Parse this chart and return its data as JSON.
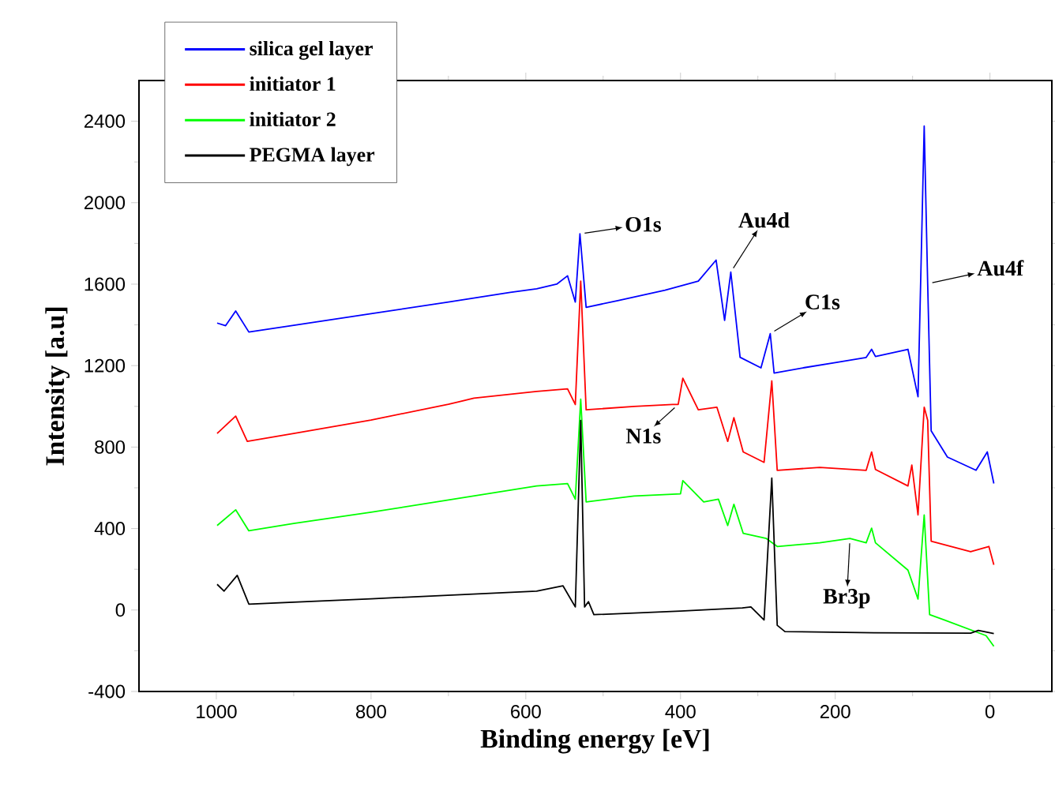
{
  "chart_data": {
    "type": "line",
    "xlabel": "Binding energy [eV]",
    "ylabel": "Intensity [a.u]",
    "xlim": [
      1100,
      -80
    ],
    "ylim": [
      -400,
      2600
    ],
    "xticks": [
      1000,
      800,
      600,
      400,
      200,
      0
    ],
    "yticks": [
      -400,
      0,
      400,
      800,
      1200,
      1600,
      2000,
      2400
    ],
    "legend": "top left",
    "line_style": "solid",
    "series": [
      {
        "name": "silica gel layer",
        "color": "#0000ff",
        "x": [
          999,
          988,
          975,
          958,
          900,
          800,
          700,
          620,
          586,
          560,
          546,
          536,
          530,
          522,
          480,
          420,
          377,
          354,
          343,
          335,
          323,
          296,
          284,
          279,
          240,
          200,
          160,
          153,
          148,
          106,
          93,
          89,
          85,
          80.5,
          76,
          55,
          18,
          3.4,
          -5
        ],
        "values": [
          1409,
          1396,
          1468,
          1365,
          1398,
          1455,
          1512,
          1560,
          1577,
          1600,
          1641,
          1512,
          1847,
          1486,
          1520,
          1570,
          1615,
          1718,
          1422,
          1659,
          1241,
          1189,
          1357,
          1163,
          1190,
          1215,
          1240,
          1280,
          1245,
          1280,
          1047,
          1705,
          2376,
          1602,
          880,
          751,
          686,
          776,
          621
        ]
      },
      {
        "name": "initiator 1",
        "color": "#ff0000",
        "x": [
          999,
          975,
          960,
          900,
          800,
          700,
          667,
          586,
          546,
          536,
          529,
          522,
          460,
          410,
          403,
          397,
          377,
          353,
          339,
          331,
          319,
          292,
          282,
          275,
          220,
          160,
          153,
          148,
          106,
          101,
          93,
          85,
          80.5,
          76,
          25,
          1.4,
          -5
        ],
        "values": [
          867,
          952,
          828,
          867,
          933,
          1010,
          1040,
          1073,
          1086,
          1009,
          1615,
          983,
          1000,
          1009,
          1009,
          1138,
          983,
          996,
          828,
          944,
          776,
          725,
          1125,
          686,
          700,
          686,
          776,
          690,
          609,
          712,
          467,
          996,
          931,
          338,
          286,
          312,
          222
        ]
      },
      {
        "name": "initiator 2",
        "color": "#00ff00",
        "x": [
          999,
          975,
          958,
          900,
          800,
          700,
          586,
          546,
          536,
          529,
          522,
          460,
          400,
          397,
          370,
          351,
          339,
          331,
          319,
          289,
          275,
          220,
          181,
          160,
          153,
          148,
          106,
          93,
          85,
          78,
          59,
          5,
          -5
        ],
        "values": [
          415,
          492,
          389,
          425,
          480,
          540,
          609,
          621,
          544,
          1035,
          531,
          560,
          570,
          635,
          531,
          544,
          415,
          519,
          377,
          351,
          312,
          330,
          351,
          330,
          402,
          330,
          196,
          54,
          467,
          -23,
          -49,
          -126,
          -178
        ]
      },
      {
        "name": "PEGMA layer",
        "color": "#000000",
        "x": [
          999,
          990,
          973,
          958,
          800,
          586,
          552,
          536,
          529,
          524,
          519,
          512,
          400,
          320,
          309,
          292,
          282,
          275,
          265,
          150,
          25,
          15,
          -5
        ],
        "values": [
          126,
          93,
          170,
          29,
          55,
          93,
          119,
          15,
          931,
          15,
          41,
          -23,
          -5,
          10,
          15,
          -49,
          648,
          -75,
          -106,
          -112,
          -114,
          -100,
          -116
        ]
      }
    ],
    "annotations": [
      {
        "text": "O1s",
        "x": 530,
        "y": 1847
      },
      {
        "text": "Au4d",
        "x": 335,
        "y": 1659
      },
      {
        "text": "C1s",
        "x": 284,
        "y": 1357
      },
      {
        "text": "Au4f",
        "x": 80.5,
        "y": 1602
      },
      {
        "text": "N1s",
        "x": 403,
        "y": 1009
      },
      {
        "text": "Br3p",
        "x": 181,
        "y": 351
      }
    ]
  }
}
